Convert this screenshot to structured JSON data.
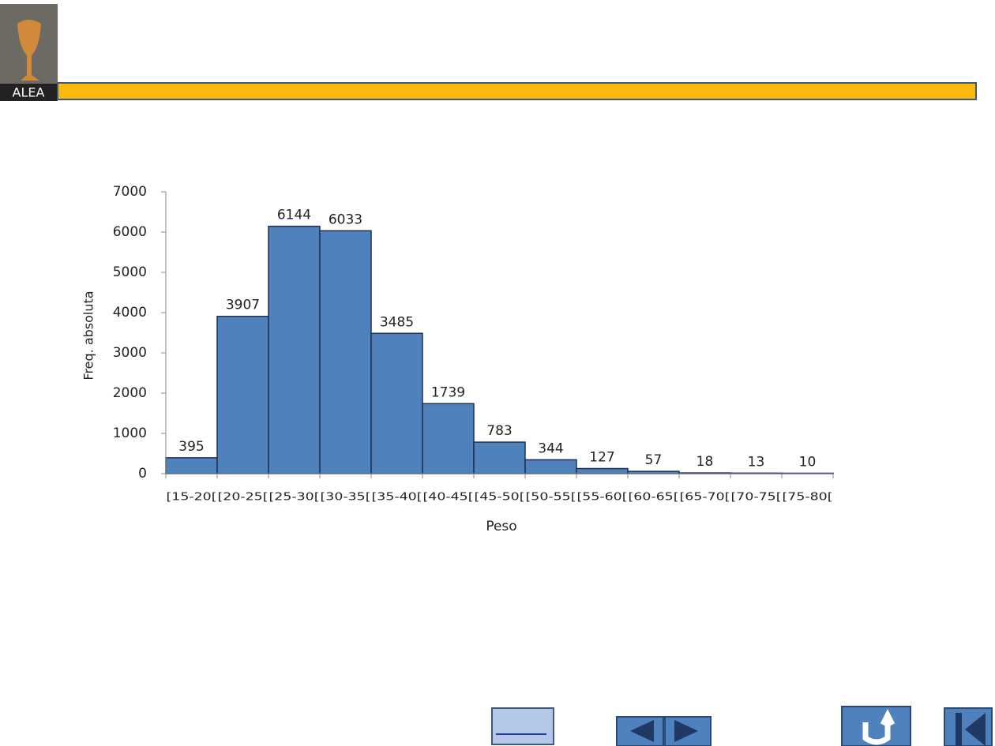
{
  "logo": {
    "text": "ALEA"
  },
  "chart_data": {
    "type": "bar",
    "x_label": "Peso",
    "y_label": "Freq. absoluta",
    "categories": [
      "[15-20[",
      "[20-25[",
      "[25-30[",
      "[30-35[",
      "[35-40[",
      "[40-45[",
      "[45-50[",
      "[50-55[",
      "[55-60[",
      "[60-65[",
      "[65-70[",
      "[70-75[",
      "[75-80["
    ],
    "values": [
      395,
      3907,
      6144,
      6033,
      3485,
      1739,
      783,
      344,
      127,
      57,
      18,
      13,
      10
    ],
    "color": "#4f81bd",
    "ylim": [
      0,
      7000
    ],
    "yticks": [
      0,
      1000,
      2000,
      3000,
      4000,
      5000,
      6000,
      7000
    ]
  }
}
